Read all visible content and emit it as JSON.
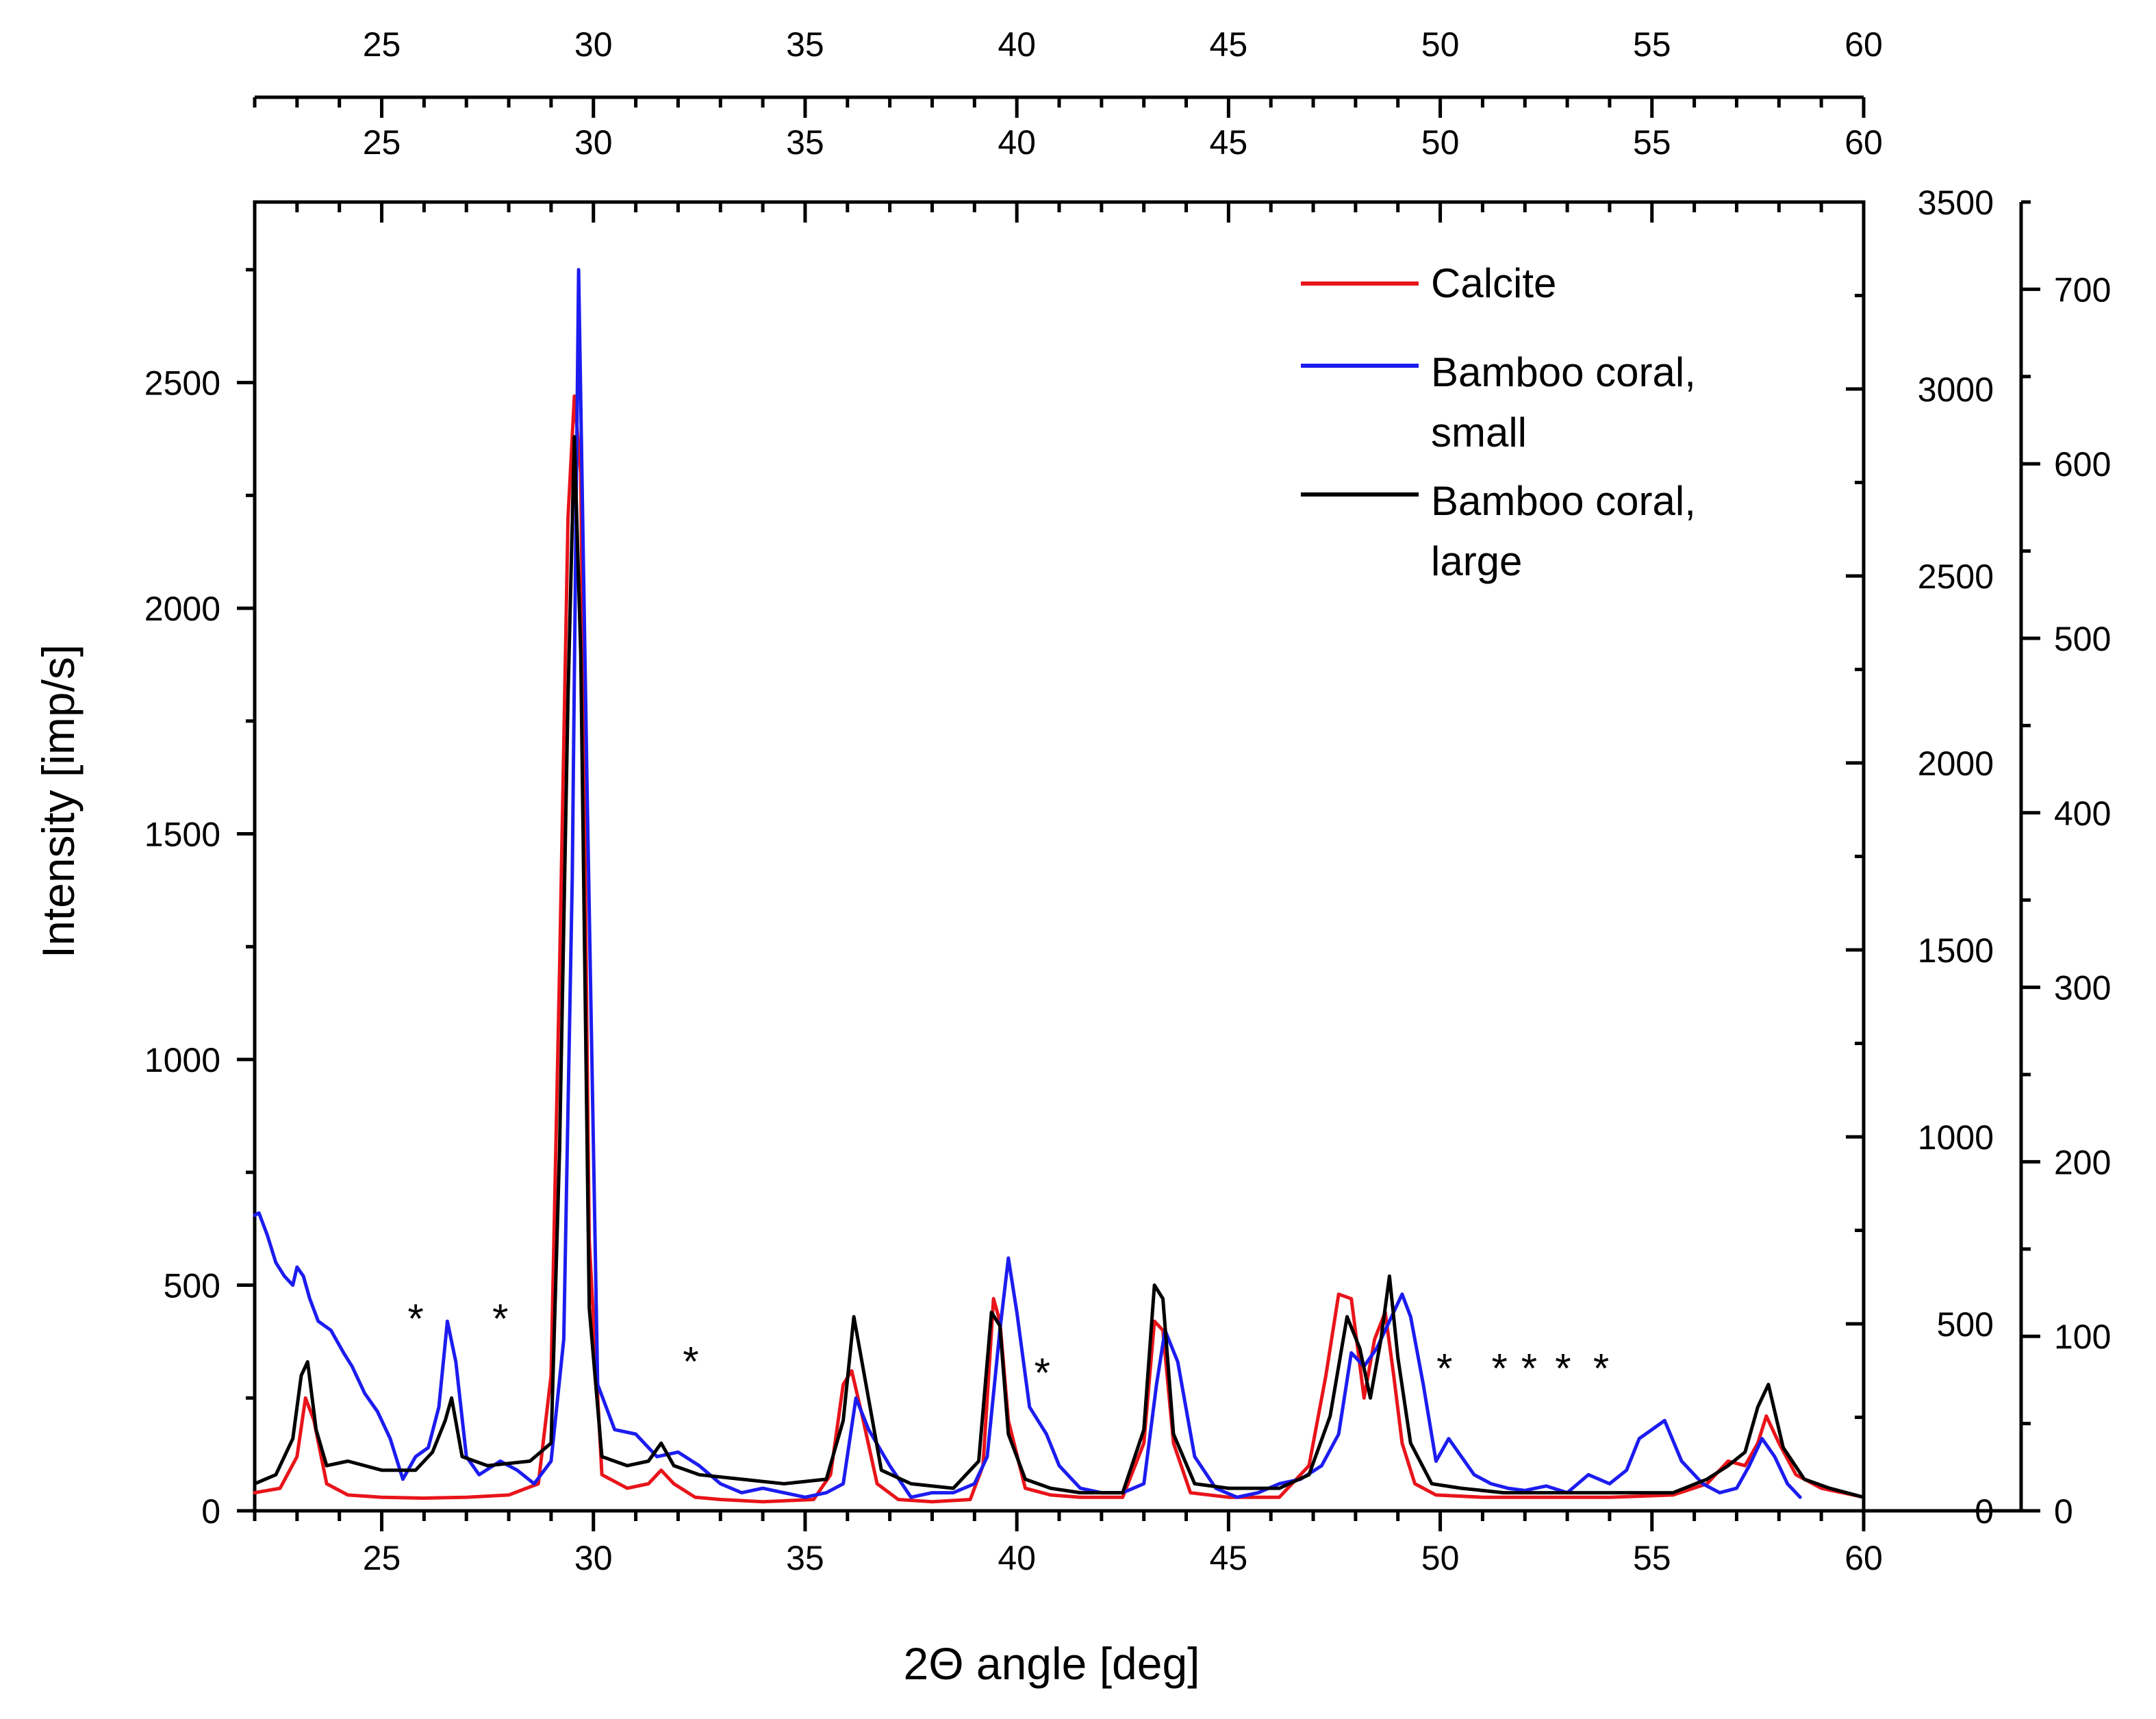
{
  "chart_data": {
    "type": "line",
    "title": "",
    "xlabel": "2Θ angle [deg]",
    "ylabel": "Intensity [imp/s]",
    "xlim": [
      22,
      60
    ],
    "ylim": [
      0,
      2900
    ],
    "y2lim": [
      0,
      3500
    ],
    "y3lim": [
      0,
      750
    ],
    "x_ticks": [
      25,
      30,
      35,
      40,
      45,
      50,
      55,
      60
    ],
    "y_ticks": [
      0,
      500,
      1000,
      1500,
      2000,
      2500
    ],
    "y2_ticks": [
      0,
      500,
      1000,
      1500,
      2000,
      2500,
      3000,
      3500
    ],
    "y3_ticks": [
      0,
      100,
      200,
      300,
      400,
      500,
      600,
      700
    ],
    "legend_position": "top-right",
    "legend": [
      {
        "label_line1": "Calcite",
        "label_line2": "",
        "color": "#e8141a"
      },
      {
        "label_line1": "Bamboo coral,",
        "label_line2": "small",
        "color": "#1c1cf0"
      },
      {
        "label_line1": "Bamboo coral,",
        "label_line2": "large",
        "color": "#000000"
      }
    ],
    "annotations": [
      {
        "text": "*",
        "x": 25.8,
        "y": 440
      },
      {
        "text": "*",
        "x": 27.8,
        "y": 440
      },
      {
        "text": "*",
        "x": 32.3,
        "y": 345
      },
      {
        "text": "*",
        "x": 40.6,
        "y": 320
      },
      {
        "text": "*",
        "x": 50.1,
        "y": 330
      },
      {
        "text": "*",
        "x": 51.4,
        "y": 330
      },
      {
        "text": "*",
        "x": 52.1,
        "y": 330
      },
      {
        "text": "*",
        "x": 52.9,
        "y": 330
      },
      {
        "text": "*",
        "x": 53.8,
        "y": 330
      }
    ],
    "series": [
      {
        "name": "Calcite",
        "color": "#e8141a",
        "x": [
          22,
          22.6,
          23.0,
          23.2,
          23.4,
          23.7,
          24.2,
          25,
          26,
          27,
          28,
          28.7,
          29.0,
          29.2,
          29.4,
          29.55,
          29.7,
          29.9,
          30.2,
          30.8,
          31.3,
          31.6,
          31.9,
          32.4,
          33,
          34,
          35.2,
          35.6,
          35.9,
          36.1,
          36.35,
          36.7,
          37.2,
          38,
          38.9,
          39.2,
          39.45,
          39.6,
          39.8,
          40.2,
          40.8,
          41.5,
          42.5,
          43.0,
          43.25,
          43.45,
          43.7,
          44.1,
          45,
          46.2,
          46.9,
          47.3,
          47.6,
          47.9,
          48.2,
          48.45,
          48.7,
          48.9,
          49.1,
          49.4,
          49.9,
          51,
          52.5,
          54,
          55.5,
          56.3,
          56.8,
          57.2,
          57.5,
          57.7,
          58.0,
          58.4,
          59,
          59.5,
          60
        ],
        "y": [
          40,
          50,
          120,
          250,
          200,
          60,
          35,
          30,
          28,
          30,
          35,
          60,
          300,
          1200,
          2200,
          2470,
          2300,
          600,
          80,
          50,
          60,
          90,
          60,
          30,
          25,
          20,
          25,
          80,
          280,
          310,
          210,
          60,
          25,
          20,
          25,
          100,
          470,
          420,
          200,
          50,
          35,
          30,
          30,
          150,
          420,
          400,
          150,
          40,
          30,
          30,
          100,
          300,
          480,
          470,
          250,
          380,
          440,
          300,
          150,
          60,
          35,
          30,
          30,
          30,
          35,
          60,
          110,
          100,
          150,
          210,
          150,
          80,
          50,
          40,
          30
        ]
      },
      {
        "name": "Bamboo coral, small",
        "color": "#1c1cf0",
        "x": [
          22,
          22.1,
          22.3,
          22.5,
          22.7,
          22.9,
          23.0,
          23.15,
          23.3,
          23.5,
          23.8,
          24.1,
          24.3,
          24.6,
          24.9,
          25.2,
          25.5,
          25.8,
          26.1,
          26.35,
          26.55,
          26.75,
          27.0,
          27.3,
          27.8,
          28.2,
          28.6,
          29.0,
          29.3,
          29.5,
          29.65,
          29.85,
          30.1,
          30.5,
          31.0,
          31.5,
          32.0,
          32.5,
          33.0,
          33.5,
          34.0,
          34.5,
          35.0,
          35.5,
          35.9,
          36.2,
          36.5,
          37.0,
          37.5,
          38.0,
          38.5,
          39.0,
          39.3,
          39.6,
          39.8,
          40.0,
          40.3,
          40.7,
          41.0,
          41.5,
          42.0,
          42.5,
          43.0,
          43.3,
          43.5,
          43.8,
          44.2,
          44.7,
          45.2,
          45.7,
          46.2,
          46.7,
          47.2,
          47.6,
          47.9,
          48.2,
          48.5,
          48.8,
          49.1,
          49.3,
          49.6,
          49.9,
          50.2,
          50.5,
          50.8,
          51.2,
          51.6,
          52.0,
          52.5,
          53.0,
          53.5,
          54.0,
          54.4,
          54.7,
          55.0,
          55.3,
          55.7,
          56.2,
          56.6,
          57.0,
          57.3,
          57.6,
          57.9,
          58.2,
          58.5
        ],
        "y": [
          655,
          660,
          610,
          550,
          520,
          500,
          540,
          520,
          470,
          420,
          400,
          350,
          320,
          260,
          220,
          160,
          70,
          120,
          140,
          230,
          420,
          330,
          120,
          80,
          110,
          90,
          60,
          110,
          380,
          1400,
          2750,
          1600,
          280,
          180,
          170,
          120,
          130,
          100,
          60,
          40,
          50,
          40,
          30,
          40,
          60,
          250,
          180,
          100,
          30,
          40,
          40,
          60,
          120,
          400,
          560,
          440,
          230,
          170,
          100,
          50,
          40,
          40,
          60,
          280,
          400,
          330,
          120,
          50,
          30,
          40,
          60,
          70,
          100,
          170,
          350,
          320,
          360,
          420,
          480,
          430,
          280,
          110,
          160,
          120,
          80,
          60,
          50,
          45,
          55,
          40,
          80,
          60,
          90,
          160,
          180,
          200,
          110,
          60,
          40,
          50,
          100,
          160,
          120,
          60,
          30
        ]
      },
      {
        "name": "Bamboo coral, large",
        "color": "#000000",
        "x": [
          22,
          22.5,
          22.9,
          23.1,
          23.25,
          23.45,
          23.7,
          24.2,
          25.0,
          25.8,
          26.2,
          26.5,
          26.65,
          26.9,
          27.5,
          28.5,
          29.0,
          29.2,
          29.4,
          29.55,
          29.7,
          29.9,
          30.2,
          30.8,
          31.3,
          31.6,
          31.9,
          32.5,
          33.5,
          34.5,
          35.5,
          35.9,
          36.15,
          36.4,
          36.8,
          37.5,
          38.5,
          39.1,
          39.4,
          39.6,
          39.8,
          40.2,
          40.8,
          41.5,
          42.5,
          43.0,
          43.25,
          43.45,
          43.7,
          44.2,
          45.0,
          46.2,
          46.9,
          47.4,
          47.8,
          48.1,
          48.35,
          48.6,
          48.8,
          49.0,
          49.3,
          49.8,
          50.5,
          51.5,
          53.0,
          54.5,
          55.5,
          56.3,
          56.8,
          57.2,
          57.5,
          57.75,
          58.1,
          58.6,
          59.2,
          60
        ],
        "y": [
          60,
          80,
          160,
          300,
          330,
          180,
          100,
          110,
          90,
          90,
          130,
          200,
          250,
          120,
          100,
          110,
          150,
          800,
          1800,
          2380,
          1900,
          450,
          120,
          100,
          110,
          150,
          100,
          80,
          70,
          60,
          70,
          200,
          430,
          300,
          90,
          60,
          50,
          110,
          440,
          410,
          170,
          70,
          50,
          40,
          40,
          180,
          500,
          470,
          170,
          60,
          50,
          50,
          80,
          210,
          430,
          360,
          250,
          380,
          520,
          340,
          150,
          60,
          50,
          40,
          40,
          40,
          40,
          70,
          100,
          130,
          230,
          280,
          140,
          70,
          50,
          30
        ]
      }
    ]
  }
}
